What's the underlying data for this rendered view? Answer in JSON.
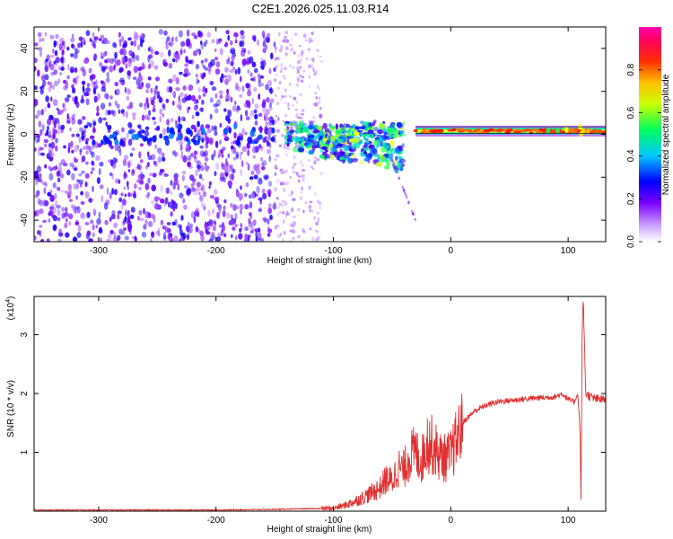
{
  "chart_data": [
    {
      "type": "heatmap",
      "title": "C2E1.2026.025.11.03.R14",
      "xlabel": "Height of straight line (km)",
      "ylabel": "Frequency (Hz)",
      "xlim": [
        -355,
        132
      ],
      "ylim": [
        -50,
        50
      ],
      "xticks": [
        -300,
        -200,
        -100,
        0,
        100
      ],
      "yticks": [
        -40,
        -20,
        0,
        20,
        40
      ],
      "grid": false,
      "colorbar": {
        "label": "Normalized spectral amplitude",
        "range": [
          0,
          1
        ],
        "ticks": [
          "0.0",
          "0.2",
          "0.4",
          "0.6",
          "0.8"
        ],
        "colors": [
          "#ffffff",
          "#7b00ff",
          "#0000ff",
          "#00c8ff",
          "#00ff60",
          "#ffff00",
          "#ff8c00",
          "#ff0000",
          "#ff0090"
        ]
      },
      "regions": [
        {
          "x": [
            -355,
            -150
          ],
          "freq": [
            -50,
            48
          ],
          "level": 0.2
        },
        {
          "x": [
            -150,
            -110
          ],
          "freq": [
            -50,
            48
          ],
          "level": 0.07
        },
        {
          "x": [
            -140,
            -40
          ],
          "freq": [
            -15,
            8
          ],
          "level": 0.35
        },
        {
          "x": [
            -30,
            132
          ],
          "freq": [
            0,
            3
          ],
          "level": 0.9
        }
      ]
    },
    {
      "type": "line",
      "xlabel": "Height of straight line (km)",
      "ylabel": "SNR (10 * v/v)",
      "multiplier_label": "(x10",
      "multiplier_exp": "4",
      "xlim": [
        -355,
        132
      ],
      "ylim": [
        0,
        3.65
      ],
      "xticks": [
        -300,
        -200,
        -100,
        0,
        100
      ],
      "yticks": [
        1,
        2,
        3
      ],
      "color": "#e03030",
      "x": [
        -355,
        -300,
        -250,
        -200,
        -150,
        -100,
        -90,
        -80,
        -70,
        -60,
        -55,
        -50,
        -45,
        -40,
        -35,
        -30,
        -25,
        -20,
        -15,
        -10,
        -5,
        0,
        5,
        10,
        20,
        30,
        40,
        50,
        60,
        70,
        80,
        90,
        95,
        100,
        105,
        108,
        110,
        111,
        112,
        113,
        115,
        120,
        125,
        132
      ],
      "y": [
        0.02,
        0.02,
        0.02,
        0.02,
        0.03,
        0.05,
        0.1,
        0.18,
        0.28,
        0.4,
        0.55,
        0.5,
        0.75,
        0.7,
        0.95,
        1.0,
        0.85,
        1.2,
        1.1,
        0.95,
        0.9,
        0.95,
        1.2,
        1.5,
        1.7,
        1.8,
        1.86,
        1.88,
        1.9,
        1.92,
        1.93,
        1.95,
        2.0,
        1.9,
        1.85,
        2.0,
        1.5,
        0.2,
        3.2,
        3.55,
        2.0,
        1.93,
        1.9,
        1.9
      ]
    }
  ]
}
